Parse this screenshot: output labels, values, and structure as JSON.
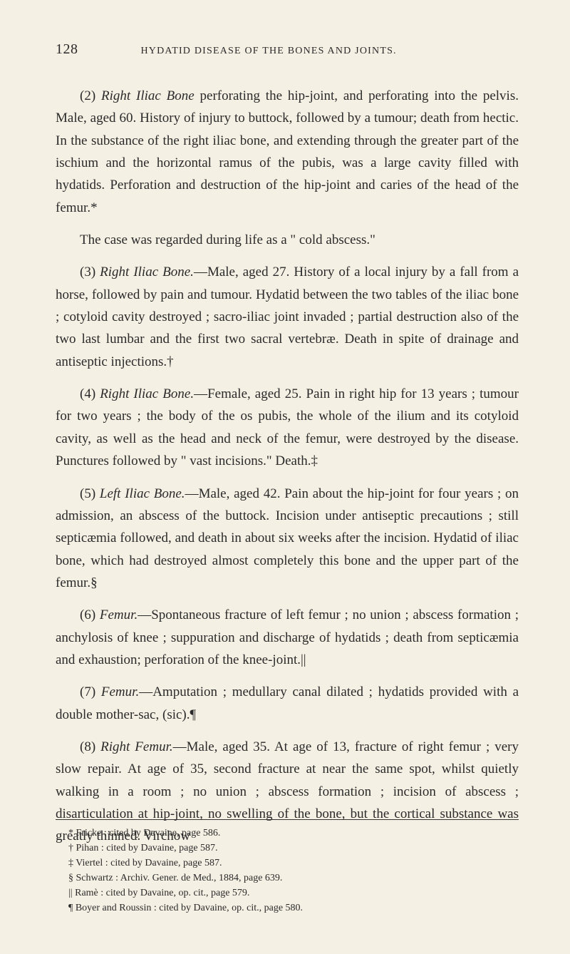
{
  "page": {
    "number": "128",
    "running_title": "HYDATID DISEASE OF THE BONES AND JOINTS.",
    "background_color": "#f5f0e4",
    "text_color": "#2a2a2a",
    "body_font_size": 19,
    "line_height": 1.65,
    "footnote_font_size": 14
  },
  "paragraphs": {
    "p1_prefix": "(2) ",
    "p1_italic": "Right Iliac Bone",
    "p1_rest": " perforating the hip-joint, and perforating into the pelvis. Male, aged 60. History of injury to buttock, followed by a tumour; death from hectic. In the substance of the right iliac bone, and extending through the greater part of the ischium and the horizontal ramus of the pubis, was a large cavity filled with hydatids. Perforation and destruction of the hip-joint and caries of the head of the femur.*",
    "p2": "The case was regarded during life as a \" cold abscess.\"",
    "p3_prefix": "(3) ",
    "p3_italic": "Right Iliac Bone.",
    "p3_rest": "—Male, aged 27. History of a local injury by a fall from a horse, followed by pain and tumour. Hydatid between the two tables of the iliac bone ; cotyloid cavity destroyed ; sacro-iliac joint invaded ; partial destruction also of the two last lumbar and the first two sacral vertebræ. Death in spite of drainage and antiseptic injections.†",
    "p4_prefix": "(4) ",
    "p4_italic": "Right Iliac Bone.",
    "p4_rest": "—Female, aged 25. Pain in right hip for 13 years ; tumour for two years ; the body of the os pubis, the whole of the ilium and its cotyloid cavity, as well as the head and neck of the femur, were destroyed by the disease. Punctures followed by \" vast incisions.\" Death.‡",
    "p5_prefix": "(5) ",
    "p5_italic": "Left Iliac Bone.",
    "p5_rest": "—Male, aged 42. Pain about the hip-joint for four years ; on admission, an abscess of the buttock. Incision under antiseptic precautions ; still septicæmia followed, and death in about six weeks after the incision. Hydatid of iliac bone, which had destroyed almost completely this bone and the upper part of the femur.§",
    "p6_prefix": "(6) ",
    "p6_italic": "Femur.",
    "p6_rest": "—Spontaneous fracture of left femur ; no union ; abscess formation ; anchylosis of knee ; suppuration and discharge of hydatids ; death from septicæmia and exhaustion; perforation of the knee-joint.||",
    "p7_prefix": "(7) ",
    "p7_italic": "Femur.",
    "p7_rest": "—Amputation ; medullary canal dilated ; hydatids provided with a double mother-sac, (sic).¶",
    "p8_prefix": "(8) ",
    "p8_italic": "Right Femur.",
    "p8_rest": "—Male, aged 35. At age of 13, fracture of right femur ; very slow repair. At age of 35, second fracture at near the same spot, whilst quietly walking in a room ; no union ; abscess formation ; incision of abscess ; disarticulation at hip-joint, no swelling of the bone, but the cortical substance was greatly thinned. Virchow"
  },
  "footnotes": {
    "f1": "* Fricke : cited by Davaine, page 586.",
    "f2": "† Pihan : cited by Davaine, page 587.",
    "f3": "‡ Viertel : cited by Davaine, page 587.",
    "f4": "§ Schwartz : Archiv. Gener. de Med., 1884, page 639.",
    "f5": "|| Ramè : cited by Davaine, op. cit., page 579.",
    "f6": "¶ Boyer and Roussin : cited by Davaine, op. cit., page 580."
  }
}
